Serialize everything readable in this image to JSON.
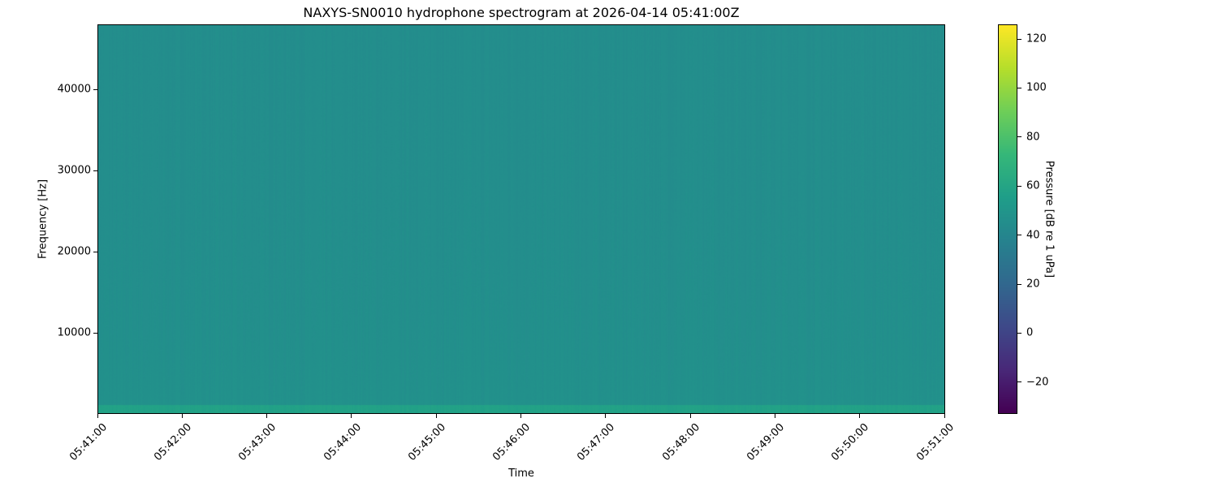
{
  "chart_data": {
    "type": "heatmap",
    "title": "NAXYS-SN0010 hydrophone spectrogram at 2026-04-14 05:41:00Z",
    "xlabel": "Time",
    "ylabel": "Frequency [Hz]",
    "colorbar_label": "Pressure [dB re 1 uPa]",
    "colormap": "viridis",
    "x_ticks": [
      "05:41:00",
      "05:42:00",
      "05:43:00",
      "05:44:00",
      "05:45:00",
      "05:46:00",
      "05:47:00",
      "05:48:00",
      "05:49:00",
      "05:50:00",
      "05:51:00"
    ],
    "xlim": [
      "05:41:00",
      "05:51:00"
    ],
    "y_ticks": [
      10000,
      20000,
      30000,
      40000
    ],
    "ylim": [
      0,
      48000
    ],
    "colorbar_ticks": [
      -20,
      0,
      20,
      40,
      60,
      80,
      100,
      120
    ],
    "clim": [
      -33,
      126
    ],
    "typical_level_db": 45,
    "low_frequency_band": {
      "max_hz": 1000,
      "level_db": 58
    },
    "grid": false
  }
}
